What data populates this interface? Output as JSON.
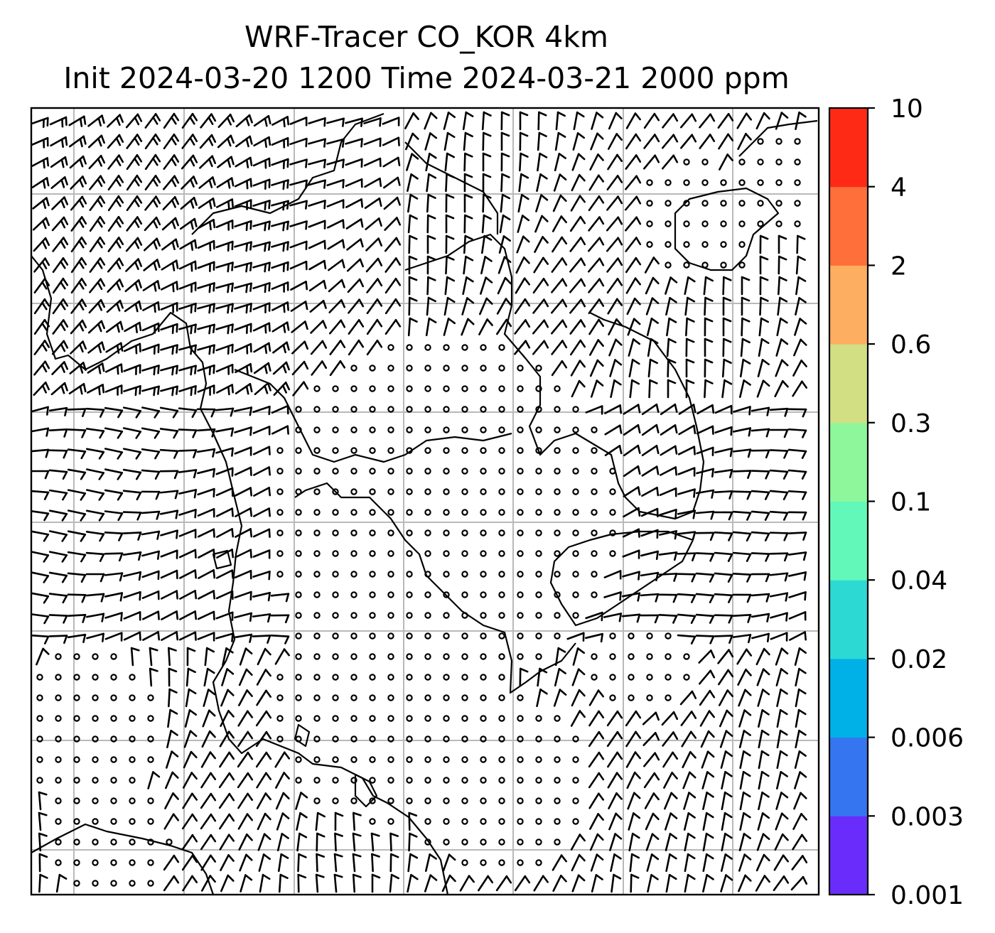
{
  "title": {
    "line1": "WRF-Tracer CO_KOR 4km",
    "line2": "Init 2024-03-20 1200 Time 2024-03-21 2000 ppm"
  },
  "colorbar": {
    "levels": [
      "0.001",
      "0.003",
      "0.006",
      "0.02",
      "0.04",
      "0.1",
      "0.3",
      "0.6",
      "2",
      "4",
      "10"
    ],
    "colors": [
      "#6a2cfb",
      "#3575f0",
      "#00b1e8",
      "#2cd9d3",
      "#62f8b9",
      "#8ef79b",
      "#d2df82",
      "#fdae61",
      "#ff6f3a",
      "#ff2a16"
    ]
  },
  "map": {
    "gridlines": "on",
    "gridline_color": "#b9b9b9",
    "wind_symbol": "wind barbs",
    "coastline_color": "#000000"
  }
}
